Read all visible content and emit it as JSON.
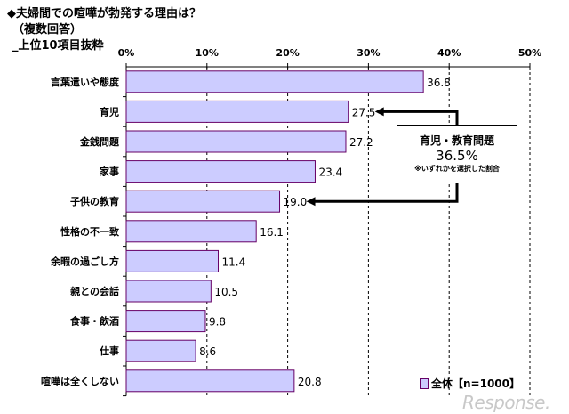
{
  "chart_data": {
    "type": "bar",
    "orientation": "horizontal",
    "title": "◆夫婦間での喧嘩が勃発する理由は？",
    "subtitle_lines": [
      "（複数回答）",
      "_上位10項目抜粋"
    ],
    "categories": [
      "言葉遣いや態度",
      "育児",
      "金銭問題",
      "家事",
      "子供の教育",
      "性格の不一致",
      "余暇の過ごし方",
      "親との会話",
      "食事・飲酒",
      "仕事",
      "喧嘩は全くしない"
    ],
    "series": [
      {
        "name": "全体【n=1000】",
        "values": [
          36.8,
          27.5,
          27.2,
          23.4,
          19.0,
          16.1,
          11.4,
          10.5,
          9.8,
          8.6,
          20.8
        ]
      }
    ],
    "data_labels": [
      "36.8",
      "27.5",
      "27.2",
      "23.4",
      "19.0",
      "16.1",
      "11.4",
      "10.5",
      "9.8",
      "8.6",
      "20.8"
    ],
    "x_ticks": [
      "0%",
      "10%",
      "20%",
      "30%",
      "40%",
      "50%"
    ],
    "xlim": [
      0,
      50
    ],
    "grid": "vertical dashed",
    "legend_position": "bottom-right",
    "bar_fill": "#ccccff",
    "bar_border": "#660066",
    "annotation": {
      "title": "育児・教育問題",
      "value": "36.5%",
      "note": "※いずれかを選択した割合",
      "links": [
        "育児",
        "子供の教育"
      ]
    }
  },
  "watermark": "Response."
}
